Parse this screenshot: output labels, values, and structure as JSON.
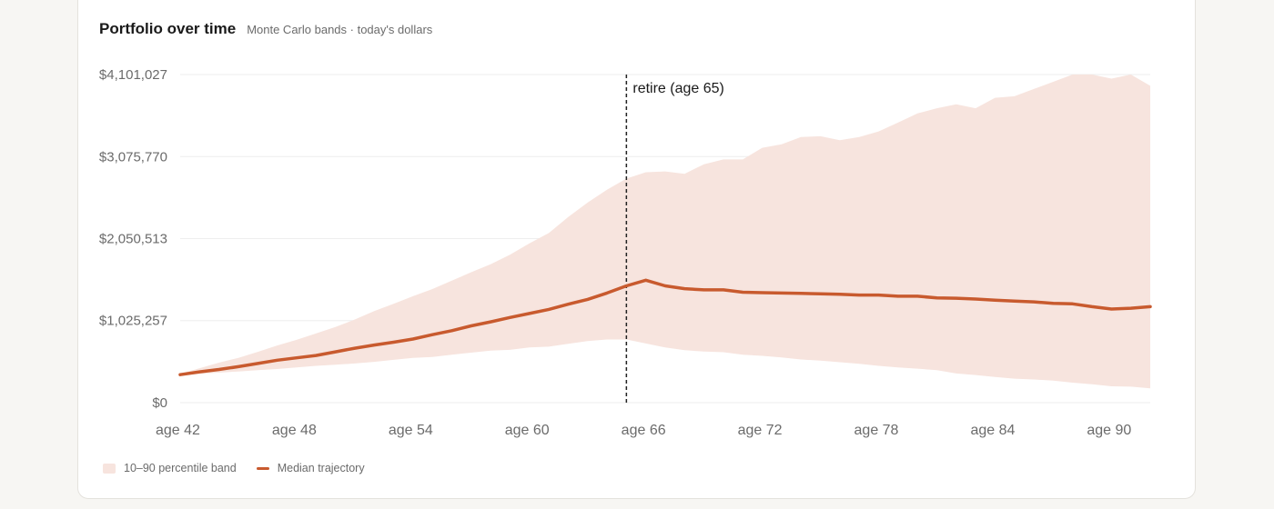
{
  "card": {
    "title": "Portfolio over time",
    "subtitle": "Monte Carlo bands · today's dollars"
  },
  "chart_data": {
    "type": "area",
    "title": "Portfolio over time",
    "subtitle": "Monte Carlo bands · today's dollars",
    "x": [
      42,
      43,
      44,
      45,
      46,
      47,
      48,
      49,
      50,
      51,
      52,
      53,
      54,
      55,
      56,
      57,
      58,
      59,
      60,
      61,
      62,
      63,
      64,
      65,
      66,
      67,
      68,
      69,
      70,
      71,
      72,
      73,
      74,
      75,
      76,
      77,
      78,
      79,
      80,
      81,
      82,
      83,
      84,
      85,
      86,
      87,
      88,
      89,
      90,
      91,
      92
    ],
    "x_ticks": [
      "age 42",
      "age 48",
      "age 54",
      "age 60",
      "age 66",
      "age 72",
      "age 78",
      "age 84",
      "age 90"
    ],
    "x_tick_values": [
      42,
      48,
      54,
      60,
      66,
      72,
      78,
      84,
      90
    ],
    "xlim": [
      42,
      92
    ],
    "ylim": [
      0,
      4101027
    ],
    "y_ticks": [
      "$0",
      "$1,025,257",
      "$2,050,513",
      "$3,075,770",
      "$4,101,027"
    ],
    "y_tick_values": [
      0,
      1025257,
      2050513,
      3075770,
      4101027
    ],
    "grid": true,
    "series": [
      {
        "name": "10–90 percentile band",
        "kind": "band",
        "lower": [
          340000,
          360000,
          375000,
          390000,
          405000,
          420000,
          440000,
          460000,
          475000,
          490000,
          510000,
          535000,
          560000,
          570000,
          600000,
          625000,
          650000,
          660000,
          690000,
          700000,
          735000,
          770000,
          790000,
          790000,
          740000,
          690000,
          655000,
          640000,
          630000,
          600000,
          585000,
          565000,
          540000,
          525000,
          505000,
          485000,
          460000,
          440000,
          425000,
          405000,
          365000,
          345000,
          320000,
          300000,
          290000,
          275000,
          250000,
          230000,
          205000,
          200000,
          180000
        ],
        "upper": [
          360000,
          430000,
          500000,
          560000,
          635000,
          715000,
          785000,
          865000,
          945000,
          1040000,
          1145000,
          1235000,
          1330000,
          1420000,
          1525000,
          1630000,
          1730000,
          1850000,
          1990000,
          2120000,
          2320000,
          2500000,
          2660000,
          2800000,
          2880000,
          2890000,
          2860000,
          2980000,
          3040000,
          3040000,
          3185000,
          3230000,
          3320000,
          3330000,
          3280000,
          3320000,
          3390000,
          3500000,
          3615000,
          3680000,
          3730000,
          3680000,
          3810000,
          3830000,
          3920000,
          4010000,
          4180000,
          4130000,
          4050000,
          4160000,
          3960000
        ]
      },
      {
        "name": "Median trajectory",
        "kind": "line",
        "values": [
          350000,
          385000,
          415000,
          450000,
          490000,
          530000,
          560000,
          590000,
          635000,
          680000,
          720000,
          755000,
          795000,
          850000,
          900000,
          960000,
          1010000,
          1065000,
          1115000,
          1165000,
          1230000,
          1290000,
          1370000,
          1460000,
          1530000,
          1460000,
          1425000,
          1410000,
          1410000,
          1380000,
          1375000,
          1370000,
          1365000,
          1360000,
          1355000,
          1345000,
          1345000,
          1330000,
          1330000,
          1310000,
          1305000,
          1295000,
          1280000,
          1270000,
          1260000,
          1240000,
          1235000,
          1200000,
          1170000,
          1180000,
          1200000
        ]
      }
    ],
    "annotations": [
      {
        "x": 65,
        "label": "retire (age 65)",
        "style": "dashed-vertical"
      }
    ],
    "legend": [
      "10–90 percentile band",
      "Median trajectory"
    ],
    "legend_position": "bottom-left",
    "colors": {
      "band": "#f7e4de",
      "median": "#c85a2e",
      "grid": "#eeeeee",
      "annotation": "#222222"
    }
  }
}
